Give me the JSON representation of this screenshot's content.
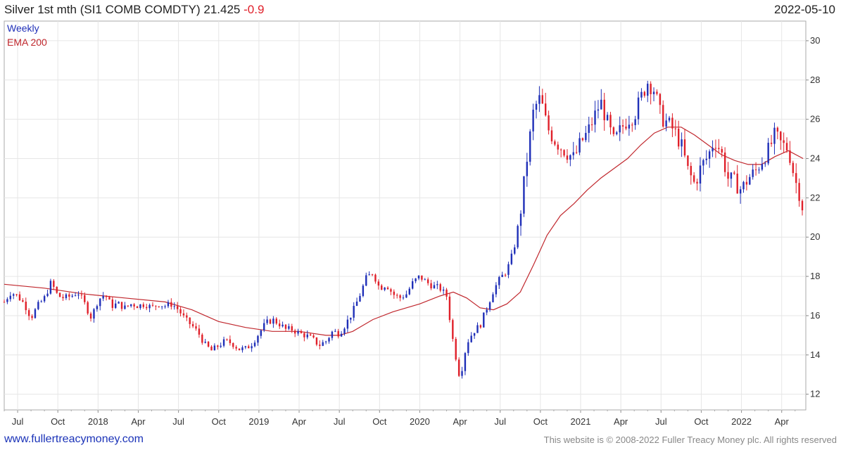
{
  "header": {
    "title": "Silver 1st mth (SI1 COMB COMDTY) 21.425",
    "change": "-0.9",
    "date": "2022-05-10"
  },
  "legend": {
    "weekly": "Weekly",
    "ema": "EMA 200",
    "weekly_color": "#1f2fb8",
    "ema_color": "#c0272d"
  },
  "footer": {
    "url": "www.fullertreacymoney.com",
    "copyright": "This website is © 2008-2022 Fuller Treacy Money plc. All rights reserved"
  },
  "colors": {
    "up": "#1f2fb8",
    "down": "#e0202a",
    "ema": "#c0272d",
    "grid": "#e6e6e6"
  },
  "chart_data": {
    "type": "line",
    "series_name": "Weekly",
    "x_unit": "months since 2017-06",
    "xlim": [
      0.0,
      59.8
    ],
    "ylim": [
      11.2,
      31.0
    ],
    "y_ticks": [
      12,
      14,
      16,
      18,
      20,
      22,
      24,
      26,
      28,
      30
    ],
    "x_ticks": [
      {
        "m": 1,
        "label": "Jul"
      },
      {
        "m": 4,
        "label": "Oct"
      },
      {
        "m": 7,
        "label": "2018"
      },
      {
        "m": 10,
        "label": "Apr"
      },
      {
        "m": 13,
        "label": "Jul"
      },
      {
        "m": 16,
        "label": "Oct"
      },
      {
        "m": 19,
        "label": "2019"
      },
      {
        "m": 22,
        "label": "Apr"
      },
      {
        "m": 25,
        "label": "Jul"
      },
      {
        "m": 28,
        "label": "Oct"
      },
      {
        "m": 31,
        "label": "2020"
      },
      {
        "m": 34,
        "label": "Apr"
      },
      {
        "m": 37,
        "label": "Jul"
      },
      {
        "m": 40,
        "label": "Oct"
      },
      {
        "m": 43,
        "label": "2021"
      },
      {
        "m": 46,
        "label": "Apr"
      },
      {
        "m": 49,
        "label": "Jul"
      },
      {
        "m": 52,
        "label": "Oct"
      },
      {
        "m": 55,
        "label": "2022"
      },
      {
        "m": 58,
        "label": "Apr"
      }
    ],
    "weekly_close": [
      [
        0.0,
        16.7
      ],
      [
        0.5,
        17.2
      ],
      [
        1.0,
        17.0
      ],
      [
        1.5,
        16.6
      ],
      [
        2.0,
        15.9
      ],
      [
        2.5,
        16.5
      ],
      [
        3.0,
        16.9
      ],
      [
        3.5,
        17.7
      ],
      [
        4.0,
        17.0
      ],
      [
        4.5,
        16.9
      ],
      [
        5.0,
        17.0
      ],
      [
        5.5,
        17.2
      ],
      [
        6.0,
        16.6
      ],
      [
        6.5,
        15.9
      ],
      [
        7.0,
        16.8
      ],
      [
        7.5,
        17.1
      ],
      [
        8.0,
        16.5
      ],
      [
        8.5,
        16.6
      ],
      [
        9.0,
        16.4
      ],
      [
        9.5,
        16.6
      ],
      [
        10.0,
        16.5
      ],
      [
        10.5,
        16.6
      ],
      [
        11.0,
        16.4
      ],
      [
        11.5,
        16.6
      ],
      [
        12.0,
        16.5
      ],
      [
        12.5,
        16.6
      ],
      [
        13.0,
        16.3
      ],
      [
        13.5,
        15.8
      ],
      [
        14.0,
        15.5
      ],
      [
        14.5,
        15.1
      ],
      [
        15.0,
        14.5
      ],
      [
        15.5,
        14.2
      ],
      [
        16.0,
        14.5
      ],
      [
        16.5,
        14.7
      ],
      [
        17.0,
        14.6
      ],
      [
        17.5,
        14.3
      ],
      [
        18.0,
        14.3
      ],
      [
        18.5,
        14.6
      ],
      [
        19.0,
        15.1
      ],
      [
        19.5,
        15.6
      ],
      [
        20.0,
        15.8
      ],
      [
        20.5,
        15.6
      ],
      [
        21.0,
        15.3
      ],
      [
        21.5,
        15.3
      ],
      [
        22.0,
        15.1
      ],
      [
        22.5,
        15.0
      ],
      [
        23.0,
        14.8
      ],
      [
        23.5,
        14.5
      ],
      [
        24.0,
        14.7
      ],
      [
        24.5,
        15.2
      ],
      [
        25.0,
        15.1
      ],
      [
        25.5,
        15.6
      ],
      [
        26.0,
        16.2
      ],
      [
        26.5,
        17.0
      ],
      [
        27.0,
        17.9
      ],
      [
        27.5,
        18.2
      ],
      [
        28.0,
        17.4
      ],
      [
        28.5,
        17.6
      ],
      [
        29.0,
        17.1
      ],
      [
        29.5,
        16.9
      ],
      [
        30.0,
        17.1
      ],
      [
        30.5,
        17.7
      ],
      [
        31.0,
        18.0
      ],
      [
        31.5,
        17.7
      ],
      [
        32.0,
        17.5
      ],
      [
        32.5,
        17.4
      ],
      [
        33.0,
        17.0
      ],
      [
        33.5,
        14.6
      ],
      [
        34.0,
        12.8
      ],
      [
        34.5,
        14.6
      ],
      [
        35.0,
        15.2
      ],
      [
        35.5,
        15.5
      ],
      [
        36.0,
        16.4
      ],
      [
        36.5,
        17.3
      ],
      [
        37.0,
        17.9
      ],
      [
        37.5,
        18.3
      ],
      [
        38.0,
        19.3
      ],
      [
        38.5,
        21.2
      ],
      [
        39.0,
        24.0
      ],
      [
        39.5,
        26.5
      ],
      [
        40.0,
        27.1
      ],
      [
        40.5,
        25.6
      ],
      [
        41.0,
        25.0
      ],
      [
        41.5,
        24.6
      ],
      [
        42.0,
        24.3
      ],
      [
        42.5,
        24.0
      ],
      [
        43.0,
        24.8
      ],
      [
        43.5,
        25.3
      ],
      [
        44.0,
        26.1
      ],
      [
        44.5,
        26.9
      ],
      [
        45.0,
        25.8
      ],
      [
        45.5,
        24.8
      ],
      [
        46.0,
        25.5
      ],
      [
        46.5,
        26.0
      ],
      [
        47.0,
        26.2
      ],
      [
        47.5,
        27.1
      ],
      [
        48.0,
        27.9
      ],
      [
        48.5,
        27.5
      ],
      [
        49.0,
        26.1
      ],
      [
        49.5,
        25.8
      ],
      [
        50.0,
        25.4
      ],
      [
        50.5,
        24.7
      ],
      [
        51.0,
        23.4
      ],
      [
        51.5,
        22.7
      ],
      [
        52.0,
        23.6
      ],
      [
        52.5,
        24.1
      ],
      [
        53.0,
        25.0
      ],
      [
        53.5,
        24.3
      ],
      [
        54.0,
        23.0
      ],
      [
        54.5,
        22.8
      ],
      [
        55.0,
        22.4
      ],
      [
        55.5,
        23.0
      ],
      [
        56.0,
        23.3
      ],
      [
        56.5,
        23.9
      ],
      [
        57.0,
        24.4
      ],
      [
        57.5,
        25.2
      ],
      [
        58.0,
        24.7
      ],
      [
        58.5,
        24.5
      ],
      [
        59.0,
        22.9
      ],
      [
        59.3,
        22.3
      ],
      [
        59.6,
        21.4
      ]
    ],
    "ema_200": [
      [
        0.0,
        17.6
      ],
      [
        3.0,
        17.4
      ],
      [
        6.0,
        17.1
      ],
      [
        9.0,
        16.9
      ],
      [
        12.0,
        16.7
      ],
      [
        14.0,
        16.3
      ],
      [
        16.0,
        15.7
      ],
      [
        18.0,
        15.4
      ],
      [
        20.0,
        15.2
      ],
      [
        22.0,
        15.2
      ],
      [
        24.0,
        15.0
      ],
      [
        25.0,
        15.0
      ],
      [
        26.0,
        15.2
      ],
      [
        27.5,
        15.8
      ],
      [
        29.0,
        16.2
      ],
      [
        31.0,
        16.6
      ],
      [
        32.5,
        17.0
      ],
      [
        33.5,
        17.2
      ],
      [
        34.5,
        16.9
      ],
      [
        35.5,
        16.4
      ],
      [
        36.5,
        16.3
      ],
      [
        37.5,
        16.6
      ],
      [
        38.5,
        17.2
      ],
      [
        39.5,
        18.6
      ],
      [
        40.5,
        20.1
      ],
      [
        41.5,
        21.1
      ],
      [
        42.5,
        21.7
      ],
      [
        43.5,
        22.4
      ],
      [
        44.5,
        23.0
      ],
      [
        45.5,
        23.5
      ],
      [
        46.5,
        24.0
      ],
      [
        47.5,
        24.7
      ],
      [
        48.5,
        25.3
      ],
      [
        49.5,
        25.6
      ],
      [
        50.5,
        25.6
      ],
      [
        51.5,
        25.2
      ],
      [
        52.5,
        24.7
      ],
      [
        53.5,
        24.2
      ],
      [
        54.5,
        23.9
      ],
      [
        55.5,
        23.7
      ],
      [
        56.5,
        23.7
      ],
      [
        57.5,
        24.1
      ],
      [
        58.5,
        24.4
      ],
      [
        59.6,
        24.0
      ]
    ]
  }
}
